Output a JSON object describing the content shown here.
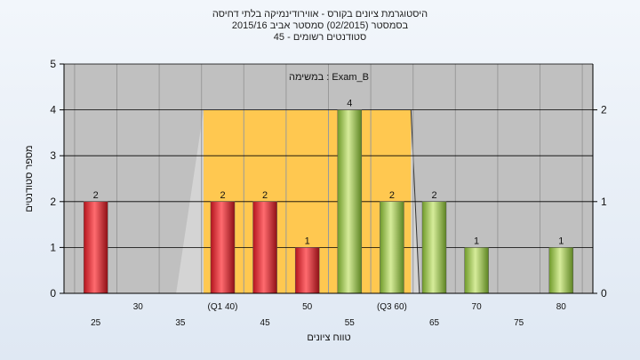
{
  "header": {
    "line1": "היסטוגרמת ציונים בקורס - אווירודינמיקה בלתי דחיסה",
    "line2": "בסמסטר  (02/2015)  סמסטר אביב 2015/16",
    "line3": "45 - סטודנטים רשומים"
  },
  "chart_data": {
    "type": "bar",
    "annotation": "במשימה : Exam_B",
    "xlabel": "טווח ציונים",
    "ylabel": "מספר סטודנטים",
    "categories": [
      "25",
      "30",
      "35",
      "(Q1 40)",
      "45",
      "50",
      "55",
      "(Q3 60)",
      "65",
      "70",
      "75",
      "80"
    ],
    "values": [
      2,
      0,
      0,
      2,
      2,
      1,
      4,
      2,
      2,
      1,
      0,
      1
    ],
    "bar_colors": [
      "red",
      "none",
      "none",
      "red",
      "red",
      "red",
      "green",
      "green",
      "green",
      "green",
      "none",
      "green"
    ],
    "ylim": [
      0,
      5
    ],
    "yticks": [
      0,
      1,
      2,
      3,
      4,
      5
    ],
    "y2lim": [
      0,
      2.5
    ],
    "y2ticks": [
      0,
      1,
      2
    ],
    "grid": true,
    "quartile_band": {
      "from_category": 3,
      "to_category": 7,
      "height": 4
    },
    "colors": {
      "plot_bg": "#c0c0c0",
      "band": "#ffc850",
      "red_bar": "#e8333a",
      "green_bar": "#a5c850",
      "wedge": "#d4d4d4"
    }
  }
}
